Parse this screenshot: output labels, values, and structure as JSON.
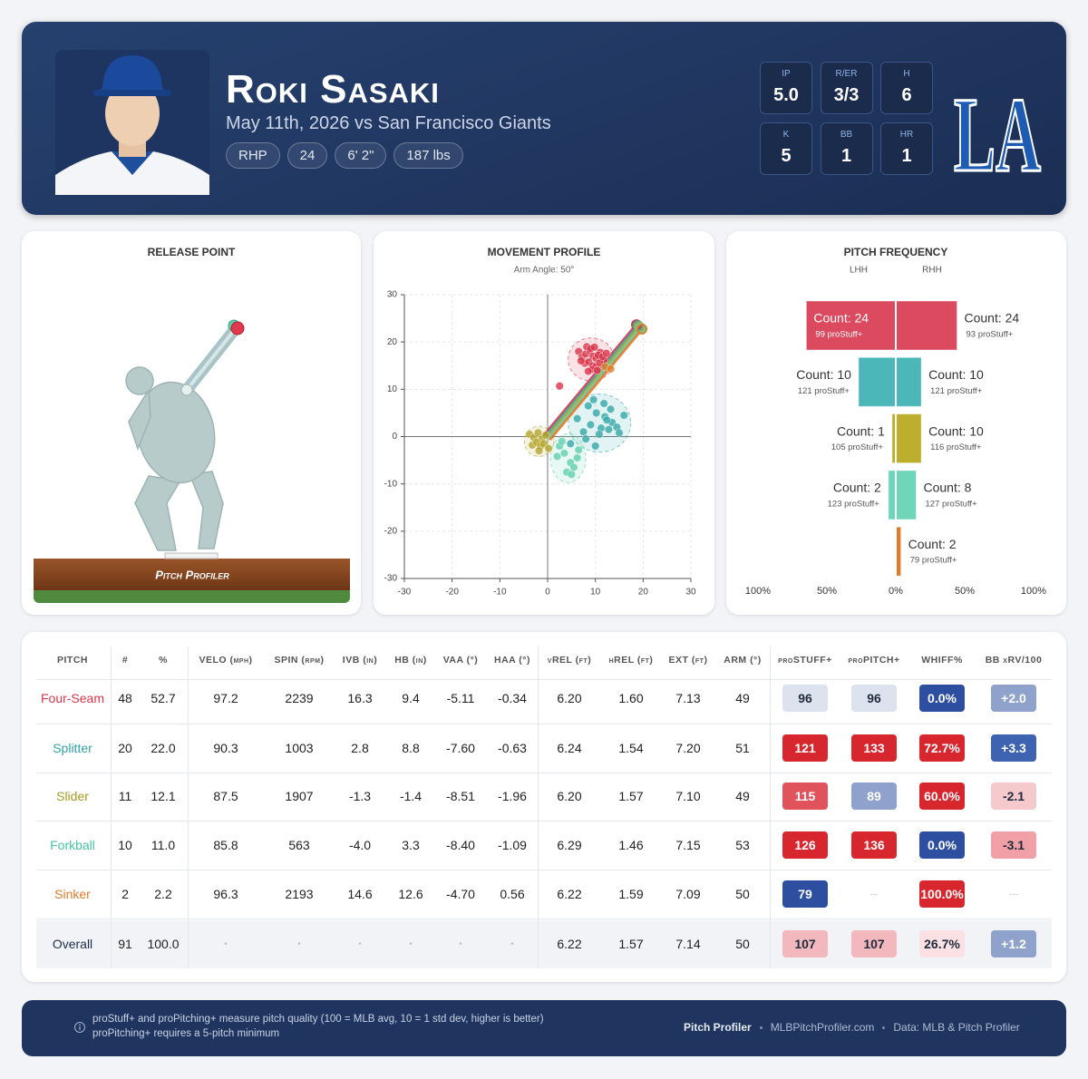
{
  "header": {
    "name": "Roki Sasaki",
    "subtitle": "May 11th, 2026 vs San Francisco Giants",
    "tags": [
      "RHP",
      "24",
      "6' 2\"",
      "187 lbs"
    ],
    "stats": [
      {
        "label": "IP",
        "value": "5.0"
      },
      {
        "label": "R/ER",
        "value": "3/3"
      },
      {
        "label": "H",
        "value": "6"
      },
      {
        "label": "K",
        "value": "5"
      },
      {
        "label": "BB",
        "value": "1"
      },
      {
        "label": "HR",
        "value": "1"
      }
    ],
    "team_logo": "LA"
  },
  "release_point": {
    "title": "RELEASE POINT",
    "logo_text": "Pitch Profiler"
  },
  "movement_profile": {
    "type": "scatter",
    "title": "MOVEMENT PROFILE",
    "subtitle": "Arm Angle: 50°",
    "xlim": [
      -30,
      30
    ],
    "ylim": [
      -30,
      30
    ],
    "xticks": [
      -30,
      -20,
      -10,
      0,
      10,
      20,
      30
    ],
    "yticks": [
      -30,
      -20,
      -10,
      0,
      10,
      20,
      30
    ],
    "grid": true,
    "series": [
      {
        "color": "#d9344a",
        "x": [
          6.5,
          7.2,
          8.0,
          8.8,
          9.5,
          10.2,
          11.0,
          11.8,
          7.8,
          8.6,
          9.4,
          10.1,
          10.9,
          8.2,
          9.0,
          9.8,
          10.6,
          11.5,
          12.3,
          7.0,
          9.3,
          10.4,
          8.5,
          2.5
        ],
        "y": [
          18.0,
          16.8,
          17.5,
          18.2,
          17.0,
          16.5,
          17.8,
          16.2,
          15.5,
          15.8,
          15.0,
          14.8,
          15.6,
          19.0,
          18.6,
          18.9,
          17.2,
          16.9,
          17.6,
          16.0,
          14.2,
          14.0,
          13.8,
          10.7
        ]
      },
      {
        "color": "#35a8a8",
        "x": [
          8.5,
          10.2,
          12.0,
          13.5,
          9.0,
          11.2,
          14.5,
          7.5,
          10.8,
          12.8,
          6.2,
          9.6,
          11.8,
          15.0,
          8.0,
          13.2,
          4.8,
          10.0,
          12.4,
          16.0
        ],
        "y": [
          6.5,
          5.0,
          4.2,
          3.0,
          2.5,
          1.8,
          2.0,
          1.0,
          0.5,
          1.5,
          3.8,
          7.8,
          7.0,
          0.8,
          -0.5,
          5.8,
          -1.5,
          -2.0,
          3.5,
          4.5
        ]
      },
      {
        "color": "#b3a52a",
        "x": [
          -3.8,
          -2.9,
          -2.0,
          -1.2,
          -0.4,
          -3.2,
          -2.3,
          -1.5,
          -0.8,
          -1.8,
          0.2
        ],
        "y": [
          0.5,
          -0.2,
          0.8,
          -0.5,
          0.3,
          -1.8,
          -1.2,
          -2.0,
          -1.5,
          -3.0,
          -2.5
        ]
      },
      {
        "color": "#5fcfae",
        "x": [
          2.5,
          3.5,
          4.8,
          5.5,
          6.2,
          4.0,
          5.0,
          3.0,
          6.5,
          2.0
        ],
        "y": [
          -2.0,
          -3.5,
          -5.5,
          -6.5,
          -4.5,
          -7.5,
          -8.0,
          -1.0,
          -2.8,
          -4.2
        ]
      },
      {
        "color": "#e07b2a",
        "x": [
          12.0,
          13.2
        ],
        "y": [
          14.8,
          14.3
        ]
      }
    ]
  },
  "pitch_frequency": {
    "type": "bar",
    "title": "PITCH FREQUENCY",
    "colors": [
      "#dc4a60",
      "#4cb7b9",
      "#bdae2e",
      "#6fd6b9",
      "#e07b2a"
    ],
    "xlim": [
      -100,
      100
    ],
    "xticks": [
      {
        "value": -100,
        "label": "100%"
      },
      {
        "value": -50,
        "label": "50%"
      },
      {
        "value": 0,
        "label": "0%"
      },
      {
        "value": 50,
        "label": "50%"
      },
      {
        "value": 100,
        "label": "100%"
      }
    ],
    "series": [
      {
        "name": "LHH",
        "values": [
          64.9,
          27.0,
          2.7,
          5.4,
          null
        ],
        "count_labels": [
          "Count: 24",
          "Count: 10",
          "Count: 1",
          "Count: 2",
          null
        ],
        "stuff_labels": [
          "99 proStuff+",
          "121 proStuff+",
          "105 proStuff+",
          "123 proStuff+",
          null
        ]
      },
      {
        "name": "RHH",
        "values": [
          44.4,
          18.5,
          18.5,
          14.8,
          3.7
        ],
        "count_labels": [
          "Count: 24",
          "Count: 10",
          "Count: 10",
          "Count: 8",
          "Count: 2"
        ],
        "stuff_labels": [
          "93 proStuff+",
          "121 proStuff+",
          "116 proStuff+",
          "127 proStuff+",
          "79 proStuff+"
        ]
      }
    ]
  },
  "table": {
    "columns": [
      "PITCH",
      "#",
      "%",
      "VELO (mph)",
      "SPIN (rpm)",
      "IVB (in)",
      "HB (in)",
      "VAA (°)",
      "HAA (°)",
      "vREL (ft)",
      "hREL (ft)",
      "EXT (ft)",
      "ARM (°)",
      "proSTUFF+",
      "proPITCH+",
      "WHIFF%",
      "BB xRV/100"
    ],
    "rows": [
      {
        "color": "#d9344a",
        "cells": [
          "Four-Seam",
          "48",
          "52.7",
          "97.2",
          "2239",
          "16.3",
          "9.4",
          "-5.11",
          "-0.34",
          "6.20",
          "1.60",
          "7.13",
          "49",
          "96",
          "96",
          "0.0%",
          "+2.0"
        ],
        "badge_colors": [
          "#dde3ee",
          "#dde3ee",
          "#2e4fa0",
          "#8ea2cc"
        ]
      },
      {
        "color": "#2fa3a6",
        "cells": [
          "Splitter",
          "20",
          "22.0",
          "90.3",
          "1003",
          "2.8",
          "8.8",
          "-7.60",
          "-0.63",
          "6.24",
          "1.54",
          "7.20",
          "51",
          "121",
          "133",
          "72.7%",
          "+3.3"
        ],
        "badge_colors": [
          "#d7262e",
          "#d7262e",
          "#d7262e",
          "#3e63b0"
        ]
      },
      {
        "color": "#a89a1f",
        "cells": [
          "Slider",
          "11",
          "12.1",
          "87.5",
          "1907",
          "-1.3",
          "-1.4",
          "-8.51",
          "-1.96",
          "6.20",
          "1.57",
          "7.10",
          "49",
          "115",
          "89",
          "60.0%",
          "-2.1"
        ],
        "badge_colors": [
          "#e0535c",
          "#8ea2cc",
          "#d7262e",
          "#f6c9cc"
        ]
      },
      {
        "color": "#45c49f",
        "cells": [
          "Forkball",
          "10",
          "11.0",
          "85.8",
          "563",
          "-4.0",
          "3.3",
          "-8.40",
          "-1.09",
          "6.29",
          "1.46",
          "7.15",
          "53",
          "126",
          "136",
          "0.0%",
          "-3.1"
        ],
        "badge_colors": [
          "#d7262e",
          "#d7262e",
          "#2e4fa0",
          "#f0a0a6"
        ]
      },
      {
        "color": "#e07b2a",
        "cells": [
          "Sinker",
          "2",
          "2.2",
          "96.3",
          "2193",
          "14.6",
          "12.6",
          "-4.70",
          "0.56",
          "6.22",
          "1.59",
          "7.09",
          "50",
          "79",
          "---",
          "100.0%",
          "---"
        ],
        "badge_colors": [
          "#2e4fa0",
          null,
          "#d7262e",
          null
        ]
      },
      {
        "color": "#1f2d4a",
        "cells": [
          "Overall",
          "91",
          "100.0",
          "•",
          "•",
          "•",
          "•",
          "•",
          "•",
          "6.22",
          "1.57",
          "7.14",
          "50",
          "107",
          "107",
          "26.7%",
          "+1.2"
        ],
        "badge_colors": [
          "#f3b8bd",
          "#f3b8bd",
          "#fbe1e3",
          "#8ea2cc"
        ]
      }
    ]
  },
  "footer": {
    "notes": [
      "proStuff+ and proPitching+ measure pitch quality (100 = MLB avg, 10 = 1 std dev, higher is better)",
      "proPitching+ requires a 5-pitch minimum"
    ],
    "brand": "Pitch Profiler",
    "site": "MLBPitchProfiler.com",
    "source": "Data: MLB & Pitch Profiler"
  }
}
